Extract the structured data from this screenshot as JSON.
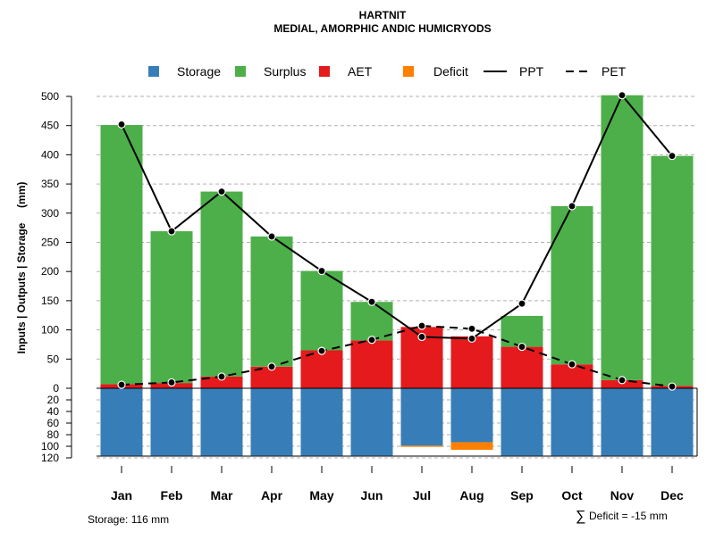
{
  "chart_data": {
    "type": "bar",
    "title": "HARTNIT",
    "subtitle": "MEDIAL, AMORPHIC ANDIC HUMICRYODS",
    "ylabel": "Inputs | Outputs | Storage     (mm)",
    "xlabel": "",
    "ylim": [
      0,
      500
    ],
    "storage_ylim": [
      0,
      120
    ],
    "yticks": [
      0,
      50,
      100,
      150,
      200,
      250,
      300,
      350,
      400,
      450,
      500
    ],
    "storage_ticks": [
      20,
      40,
      60,
      80,
      100,
      120
    ],
    "grid": true,
    "categories": [
      "Jan",
      "Feb",
      "Mar",
      "Apr",
      "May",
      "Jun",
      "Jul",
      "Aug",
      "Sep",
      "Oct",
      "Nov",
      "Dec"
    ],
    "series": [
      {
        "name": "Storage",
        "color": "#377EB8",
        "values": [
          116,
          116,
          116,
          116,
          116,
          116,
          99,
          93,
          116,
          116,
          116,
          116
        ]
      },
      {
        "name": "Surplus",
        "color": "#4DAF4A",
        "values": [
          444,
          260,
          317,
          223,
          136,
          66,
          0,
          0,
          53,
          271,
          488,
          394
        ]
      },
      {
        "name": "AET",
        "color": "#E41A1C",
        "values": [
          7,
          9,
          20,
          37,
          65,
          82,
          105,
          89,
          71,
          41,
          14,
          4
        ]
      },
      {
        "name": "Deficit",
        "color": "#FF7F00",
        "values": [
          0,
          0,
          0,
          0,
          0,
          0,
          2,
          13,
          0,
          0,
          0,
          0
        ]
      },
      {
        "name": "PPT",
        "style": "solid",
        "values": [
          452,
          269,
          337,
          260,
          201,
          148,
          88,
          85,
          145,
          312,
          502,
          398
        ]
      },
      {
        "name": "PET",
        "style": "dashed",
        "values": [
          6,
          10,
          20,
          37,
          64,
          83,
          107,
          102,
          71,
          41,
          14,
          3
        ]
      }
    ],
    "legend": {
      "position": "top",
      "items": [
        {
          "label": "Storage",
          "symbol": "square",
          "color": "#377EB8"
        },
        {
          "label": "Surplus",
          "symbol": "square",
          "color": "#4DAF4A"
        },
        {
          "label": "AET",
          "symbol": "square",
          "color": "#E41A1C"
        },
        {
          "label": "Deficit",
          "symbol": "square",
          "color": "#FF7F00"
        },
        {
          "label": "PPT",
          "symbol": "solid-line",
          "color": "#000000"
        },
        {
          "label": "PET",
          "symbol": "dashed-line",
          "color": "#000000"
        }
      ]
    },
    "annotations": {
      "storage_note": "Storage: 116 mm",
      "deficit_symbol": "∑",
      "deficit_note": "Deficit = -15 mm"
    }
  }
}
